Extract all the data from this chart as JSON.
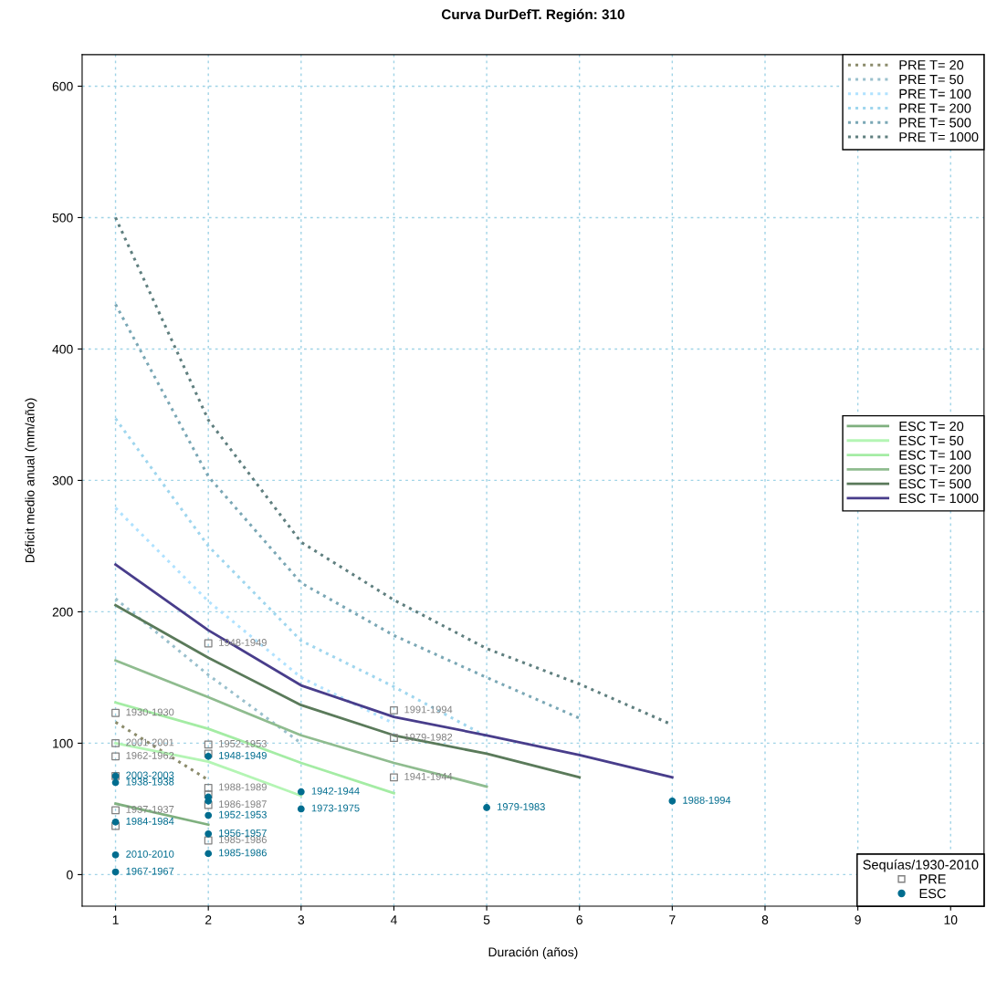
{
  "chart_data": {
    "type": "line",
    "title": "Curva DurDefT. Región: 310",
    "xlabel": "Duración (años)",
    "ylabel": "Déficit medio anual (mm/año)",
    "legend_title": "Sequías/1930-2010",
    "xlim": [
      0.64,
      10.36
    ],
    "ylim": [
      -24,
      624
    ],
    "xticks": [
      1,
      2,
      3,
      4,
      5,
      6,
      7,
      8,
      9,
      10
    ],
    "yticks": [
      0,
      100,
      200,
      300,
      400,
      500,
      600
    ],
    "grid": true,
    "legend": "right",
    "series": [
      {
        "name": "PRE T= 20",
        "type": "line",
        "line_style": "dotted",
        "color": "#8b8b6b",
        "x": [
          1,
          2
        ],
        "values": [
          116,
          72
        ]
      },
      {
        "name": "PRE T= 50",
        "type": "line",
        "line_style": "dotted",
        "color": "#9ac0cd",
        "x": [
          1,
          2,
          3
        ],
        "values": [
          210,
          152,
          100
        ]
      },
      {
        "name": "PRE T= 100",
        "type": "line",
        "line_style": "dotted",
        "color": "#b0e2ff",
        "x": [
          1,
          2,
          3,
          4
        ],
        "values": [
          279,
          208,
          150,
          115
        ]
      },
      {
        "name": "PRE T= 200",
        "type": "line",
        "line_style": "dotted",
        "color": "#9fd6ee",
        "x": [
          1,
          2,
          3,
          4,
          5
        ],
        "values": [
          347,
          250,
          178,
          143,
          105
        ]
      },
      {
        "name": "PRE T= 500",
        "type": "line",
        "line_style": "dotted",
        "color": "#7aa7b5",
        "x": [
          1,
          2,
          3,
          4,
          5,
          6
        ],
        "values": [
          434,
          303,
          222,
          182,
          150,
          119
        ]
      },
      {
        "name": "PRE T= 1000",
        "type": "line",
        "line_style": "dotted",
        "color": "#5f7f7f",
        "x": [
          1,
          2,
          3,
          4,
          5,
          6,
          7
        ],
        "values": [
          500,
          346,
          253,
          209,
          172,
          145,
          114
        ]
      },
      {
        "name": "ESC T= 20",
        "type": "line",
        "line_style": "solid",
        "color": "#7fb07f",
        "x": [
          1,
          2
        ],
        "values": [
          54,
          38
        ]
      },
      {
        "name": "ESC T= 50",
        "type": "line",
        "line_style": "solid",
        "color": "#b4f5b4",
        "x": [
          1,
          2,
          3
        ],
        "values": [
          100,
          86,
          60
        ]
      },
      {
        "name": "ESC T= 100",
        "type": "line",
        "line_style": "solid",
        "color": "#a4eca4",
        "x": [
          1,
          2,
          3,
          4
        ],
        "values": [
          131,
          111,
          85,
          62
        ]
      },
      {
        "name": "ESC T= 200",
        "type": "line",
        "line_style": "solid",
        "color": "#8fbc8f",
        "x": [
          1,
          2,
          3,
          4,
          5
        ],
        "values": [
          163,
          135,
          106,
          85,
          67
        ]
      },
      {
        "name": "ESC T= 500",
        "type": "line",
        "line_style": "solid",
        "color": "#5a7a5a",
        "x": [
          1,
          2,
          3,
          4,
          5,
          6
        ],
        "values": [
          205,
          165,
          129,
          106,
          92,
          74
        ]
      },
      {
        "name": "ESC T= 1000",
        "type": "line",
        "line_style": "solid",
        "color": "#483d8b",
        "x": [
          1,
          2,
          3,
          4,
          5,
          6,
          7
        ],
        "values": [
          236,
          186,
          144,
          120,
          106,
          91,
          74
        ]
      },
      {
        "name": "PRE",
        "type": "scatter",
        "marker": "square",
        "color": "#808080",
        "x": [
          1,
          1,
          1,
          1,
          1,
          1,
          2,
          2,
          2,
          2,
          2,
          2,
          2,
          4,
          4,
          4
        ],
        "values": [
          123,
          100,
          90,
          75,
          49,
          37,
          176,
          99,
          92,
          66,
          61,
          53,
          26,
          125,
          104,
          74
        ],
        "value_labels": [
          "1930-1930",
          "2001-2001",
          "1962-1962",
          null,
          "1937-1937",
          null,
          "1948-1949",
          "1952-1953",
          null,
          "1988-1989",
          null,
          "1986-1987",
          "1985-1986",
          "1991-1994",
          "1979-1982",
          "1941-1944"
        ]
      },
      {
        "name": "ESC",
        "type": "scatter",
        "marker": "circle",
        "color": "#006d8f",
        "x": [
          1,
          1,
          1,
          1,
          1,
          2,
          2,
          2,
          2,
          2,
          2,
          3,
          3,
          5,
          7
        ],
        "values": [
          75,
          70,
          40,
          15,
          2,
          90,
          59,
          56,
          45,
          31,
          16,
          63,
          50,
          51,
          56
        ],
        "value_labels": [
          "2003-2003",
          "1938-1938",
          "1984-1984",
          "2010-2010",
          "1967-1967",
          "1948-1949",
          null,
          null,
          "1952-1953",
          "1956-1957",
          "1985-1986",
          "1942-1944",
          "1973-1975",
          "1979-1983",
          "1988-1994"
        ]
      }
    ]
  }
}
